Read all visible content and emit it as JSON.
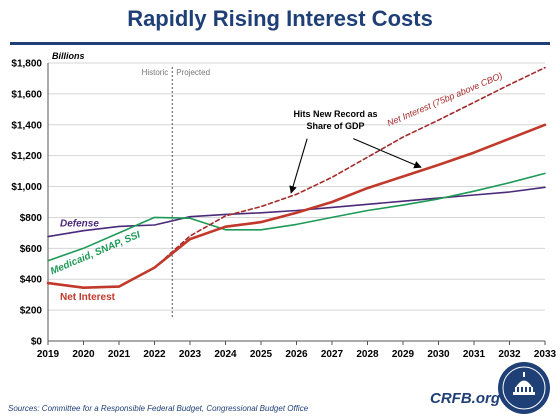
{
  "title": "Rapidly Rising Interest Costs",
  "source": "Sources: Committee for a Responsible Federal Budget, Congressional Budget Office",
  "brand": "CRFB.org",
  "colors": {
    "net_interest": "#c0392b",
    "net_interest_projected": "#a52a2a",
    "defense": "#4b2a7a",
    "medicaid": "#1e9a57",
    "title": "#1f3f77",
    "seal": "#1f3f77"
  },
  "chart_data": {
    "type": "line",
    "ylabel": "Billions",
    "ylim": [
      0,
      1800
    ],
    "y_ticks": [
      0,
      200,
      400,
      600,
      800,
      1000,
      1200,
      1400,
      1600,
      1800
    ],
    "y_tick_labels": [
      "$0",
      "$200",
      "$400",
      "$600",
      "$800",
      "$1,000",
      "$1,200",
      "$1,400",
      "$1,600",
      "$1,800"
    ],
    "x": [
      2019,
      2020,
      2021,
      2022,
      2023,
      2024,
      2025,
      2026,
      2027,
      2028,
      2029,
      2030,
      2031,
      2032,
      2033
    ],
    "x_tick_labels": [
      "2019",
      "2020",
      "2021",
      "2022",
      "2023",
      "2024",
      "2025",
      "2026",
      "2027",
      "2028",
      "2029",
      "2030",
      "2031",
      "2032",
      "2033"
    ],
    "grid": "horizontal",
    "divider": {
      "x": 2022.5,
      "left_label": "Historic",
      "right_label": "Projected"
    },
    "series": [
      {
        "key": "defense",
        "name": "Defense",
        "style": "solid",
        "values": [
          676,
          714,
          742,
          751,
          805,
          820,
          830,
          845,
          865,
          885,
          905,
          925,
          945,
          965,
          995
        ]
      },
      {
        "key": "medicaid",
        "name": "Medicaid, SNAP, SSI",
        "style": "solid",
        "values": [
          520,
          600,
          700,
          800,
          795,
          720,
          720,
          755,
          800,
          845,
          880,
          920,
          970,
          1025,
          1085
        ]
      },
      {
        "key": "net_interest",
        "name": "Net Interest",
        "style": "solid",
        "values": [
          375,
          345,
          352,
          475,
          660,
          740,
          770,
          830,
          900,
          990,
          1065,
          1140,
          1220,
          1310,
          1400
        ]
      },
      {
        "key": "net_interest_projected",
        "name": "Net Interest (75bp above CBO)",
        "style": "dashed",
        "values": [
          null,
          null,
          null,
          475,
          680,
          810,
          870,
          950,
          1060,
          1190,
          1320,
          1430,
          1545,
          1660,
          1770
        ]
      }
    ],
    "annotations": [
      {
        "text_lines": [
          "Hits New Record as",
          "Share of GDP"
        ]
      }
    ]
  }
}
